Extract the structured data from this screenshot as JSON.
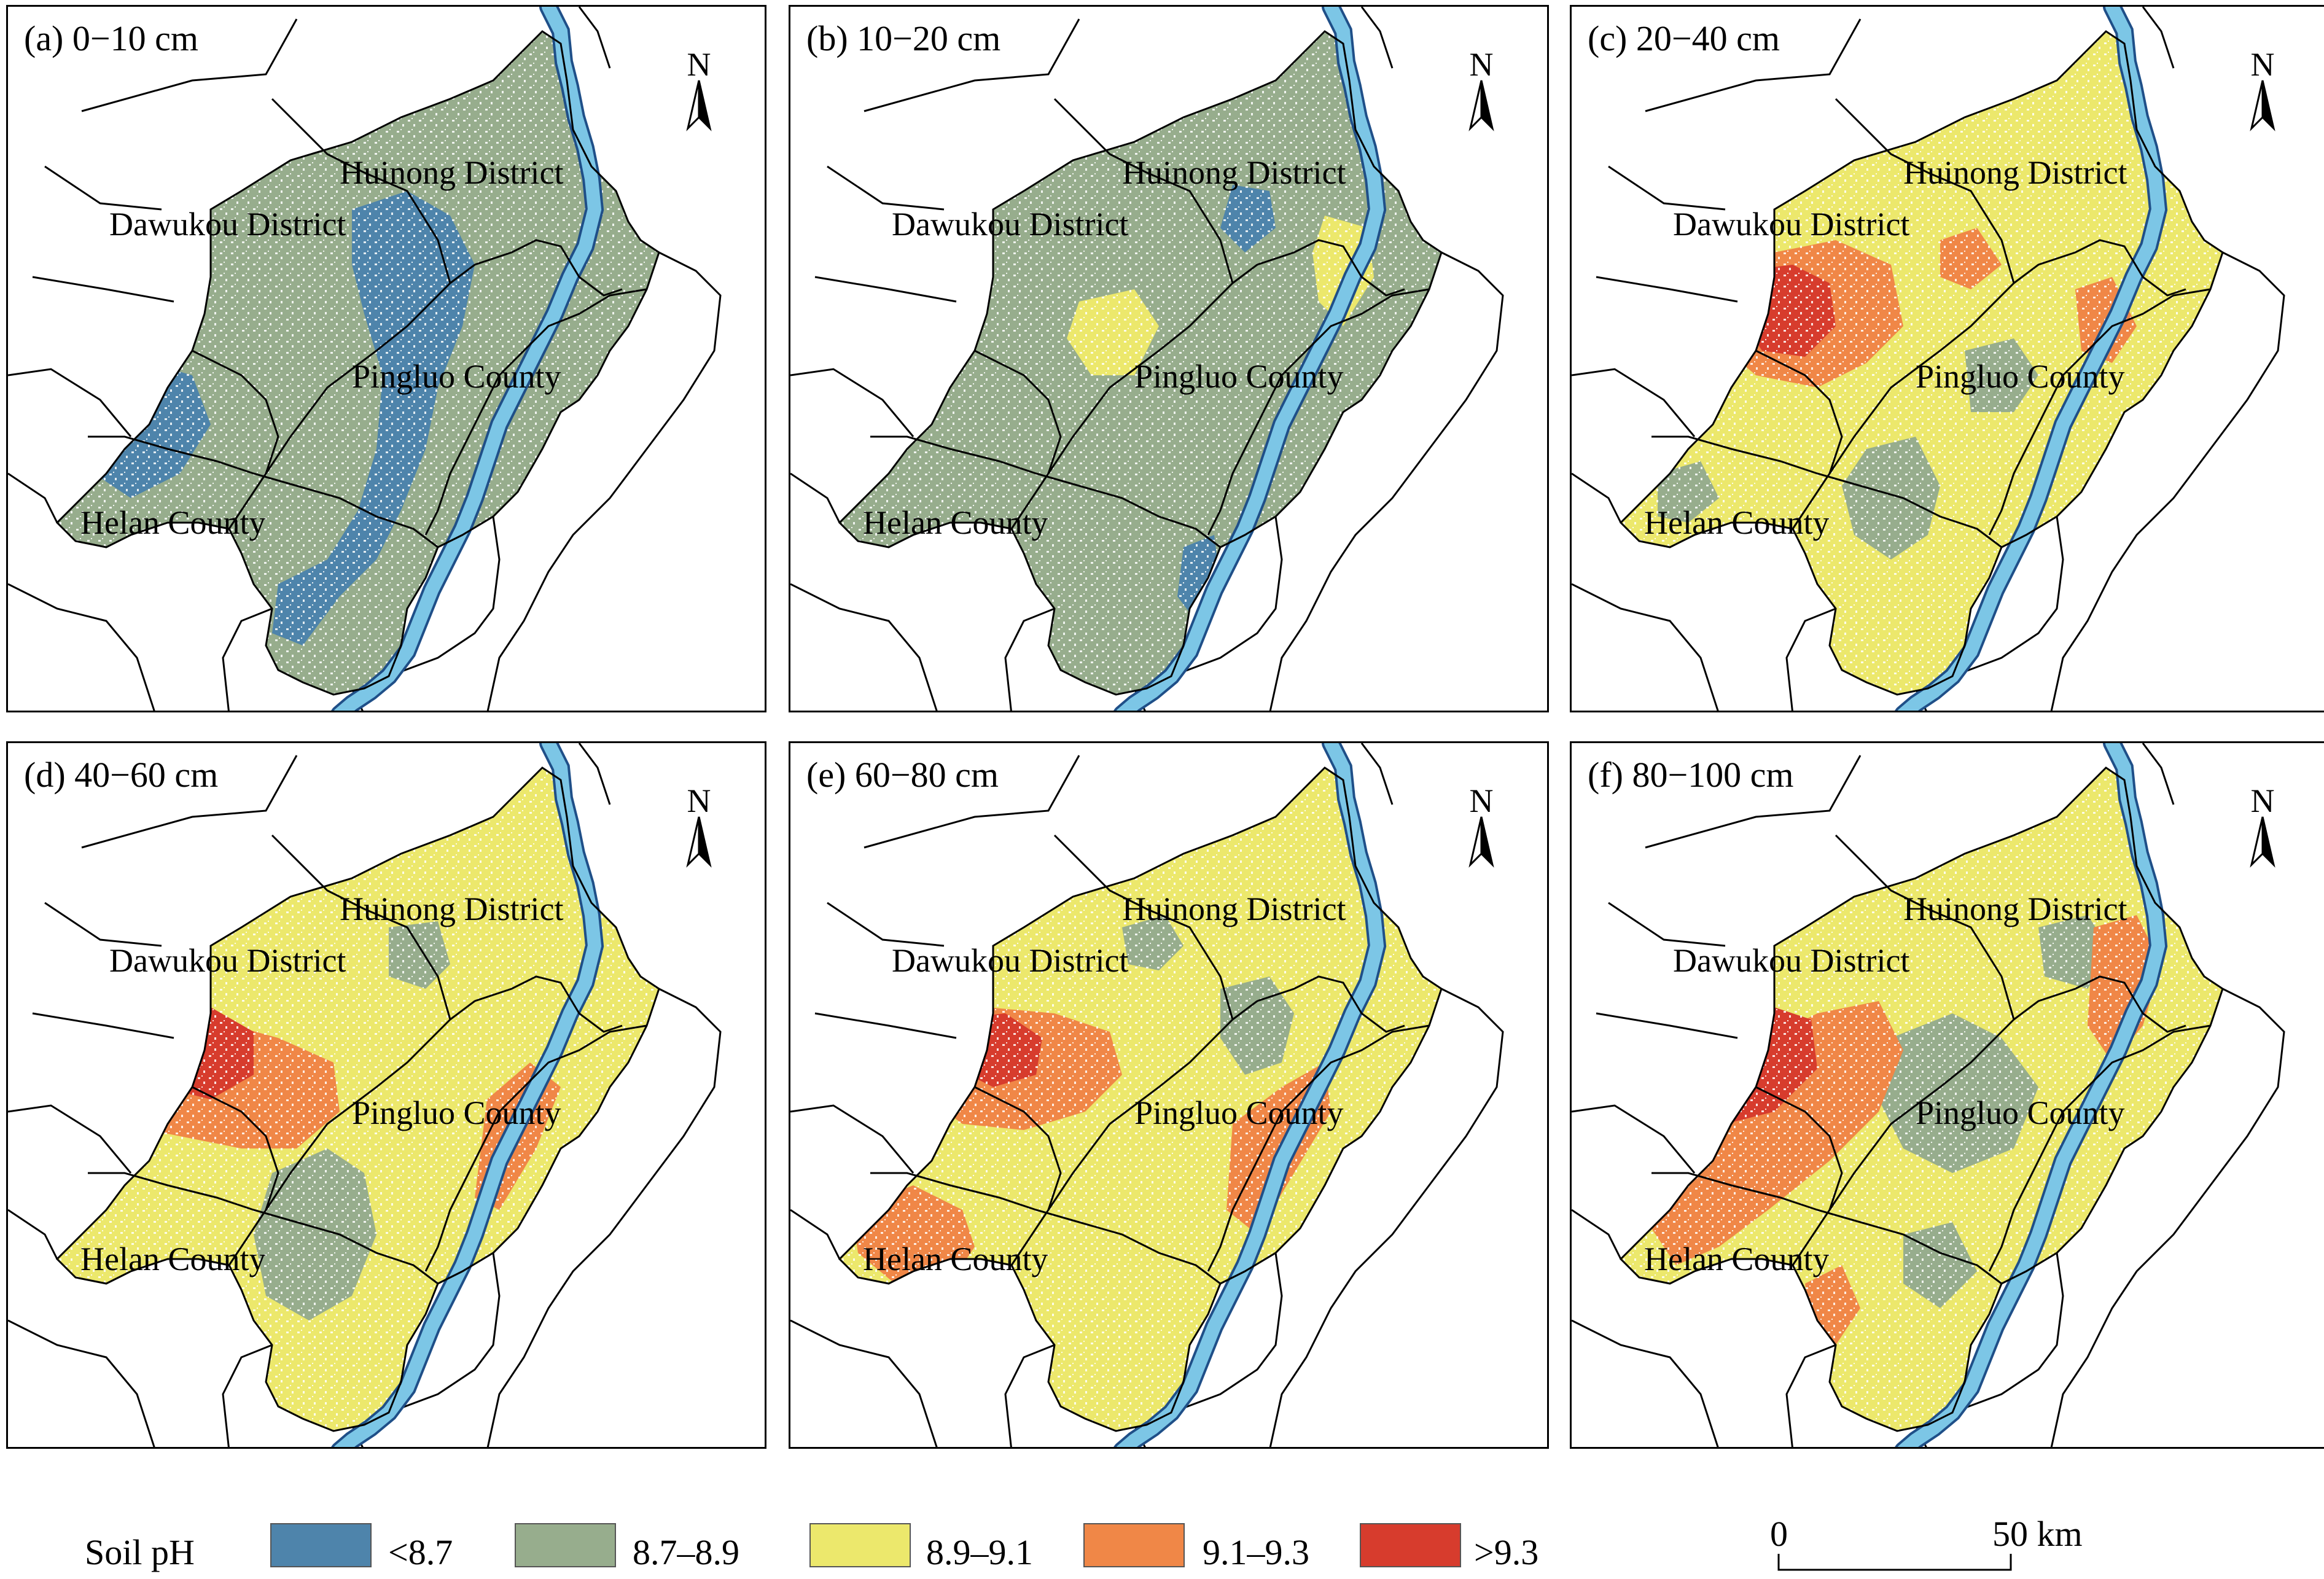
{
  "colors": {
    "lt87": "#4e84ab",
    "c8789": "#97ad8d",
    "c8991": "#ece86c",
    "c9193": "#f08747",
    "gt93": "#d73c2d",
    "river": "#7cc6e6",
    "river_edge": "#1f4f88"
  },
  "panels": [
    {
      "label": "(a) 0−10 cm",
      "dominant": "8.7–8.9"
    },
    {
      "label": "(b) 10−20 cm",
      "dominant": "8.7–8.9"
    },
    {
      "label": "(c) 20−40 cm",
      "dominant": "8.9–9.1"
    },
    {
      "label": "(d) 40−60 cm",
      "dominant": "8.9–9.1"
    },
    {
      "label": "(e) 60−80 cm",
      "dominant": "8.9–9.1"
    },
    {
      "label": "(f) 80−100 cm",
      "dominant": "8.9–9.1"
    }
  ],
  "regions": {
    "huinong": "Huinong District",
    "dawukou": "Dawukou District",
    "pingluo": "Pingluo County",
    "helan": "Helan County"
  },
  "north_label": "N",
  "legend": {
    "title": "Soil pH",
    "classes": [
      {
        "label": "<8.7",
        "color": "#4e84ab"
      },
      {
        "label": "8.7–8.9",
        "color": "#97ad8d"
      },
      {
        "label": "8.9–9.1",
        "color": "#ece86c"
      },
      {
        "label": "9.1–9.3",
        "color": "#f08747"
      },
      {
        "label": ">9.3",
        "color": "#d73c2d"
      }
    ]
  },
  "scale": {
    "start": "0",
    "end": "50 km"
  }
}
